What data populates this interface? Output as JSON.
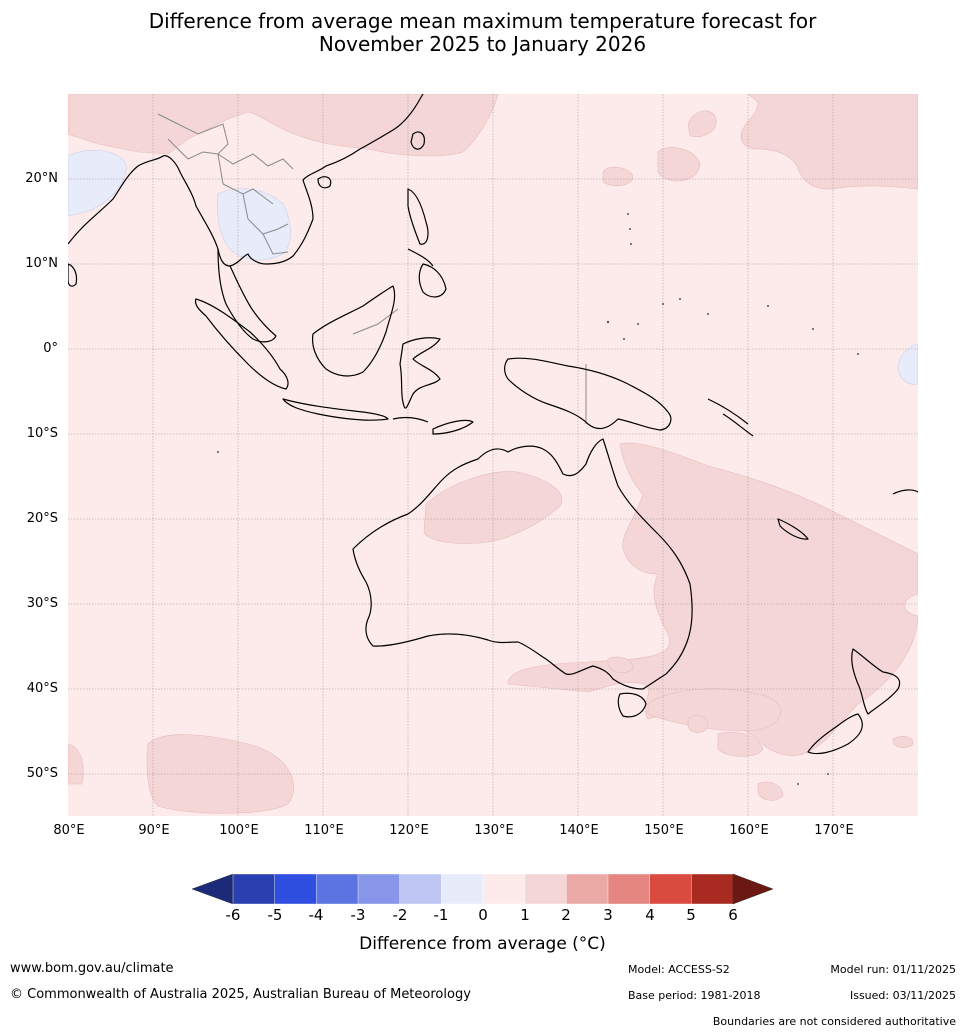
{
  "title": {
    "line1": "Difference from average mean maximum temperature forecast for",
    "line2": "November 2025 to January 2026"
  },
  "map": {
    "lat_labels": [
      "20°N",
      "10°N",
      "0°",
      "10°S",
      "20°S",
      "30°S",
      "40°S",
      "50°S"
    ],
    "lon_labels": [
      "80°E",
      "90°E",
      "100°E",
      "110°E",
      "120°E",
      "130°E",
      "140°E",
      "150°E",
      "160°E",
      "170°E"
    ],
    "colors": {
      "anom_0_1": "#fcebea",
      "anom_1_2": "#f5d6d6",
      "anom_neg1_0": "#e8ecfa",
      "coast": "#000000",
      "border": "#8a8a8a",
      "grid": "#9a9090"
    }
  },
  "legend": {
    "labels": [
      "-6",
      "-5",
      "-4",
      "-3",
      "-2",
      "-1",
      "0",
      "1",
      "2",
      "3",
      "4",
      "5",
      "6"
    ],
    "colors": [
      "#1c2a7a",
      "#2a3fb0",
      "#2f4fe0",
      "#5c73e2",
      "#8896ea",
      "#bec6f3",
      "#e8ecfa",
      "#fcebea",
      "#f5d6d6",
      "#eba9a5",
      "#e58680",
      "#da4b3f",
      "#a82a21",
      "#6b1712"
    ],
    "title": "Difference from average (°C)"
  },
  "footer": {
    "website": "www.bom.gov.au/climate",
    "copyright": "© Commonwealth of Australia 2025, Australian Bureau of Meteorology",
    "model": "Model: ACCESS-S2",
    "model_run": "Model run: 01/11/2025",
    "base_period": "Base period: 1981-2018",
    "issued": "Issued: 03/11/2025",
    "disclaimer": "Boundaries are not considered authoritative"
  }
}
